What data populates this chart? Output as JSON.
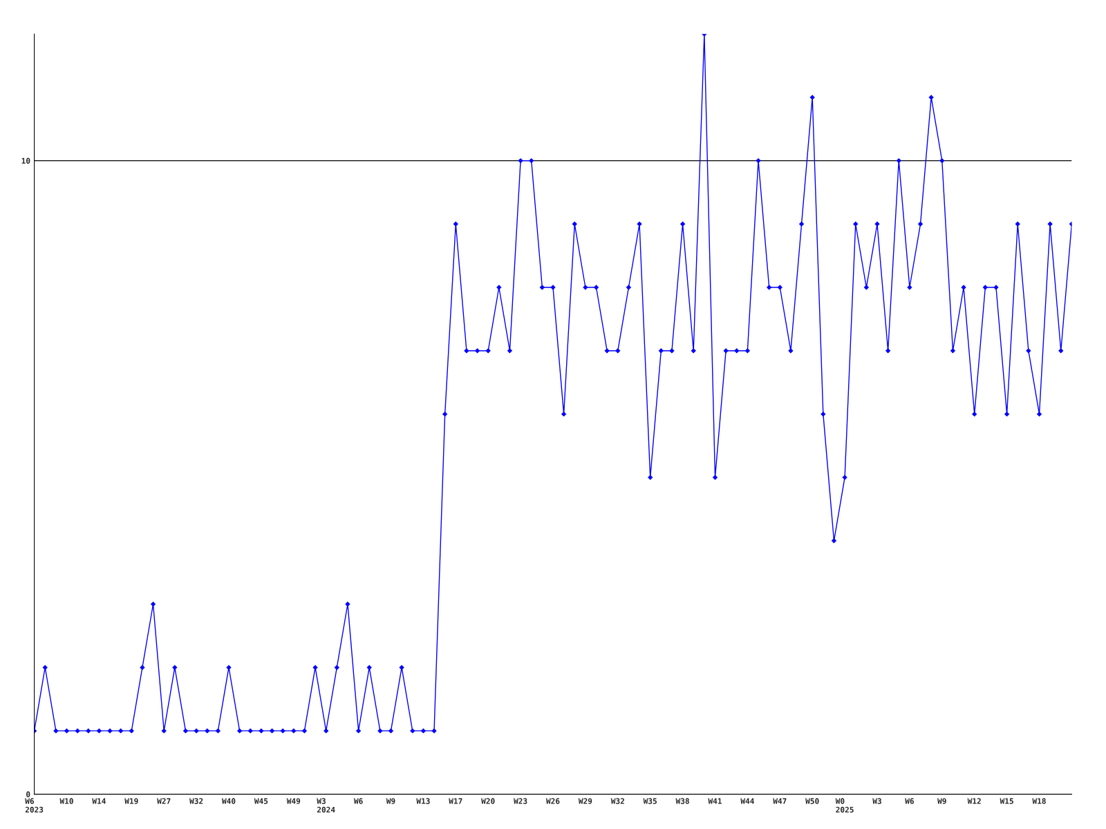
{
  "chart_data": {
    "type": "line",
    "categories": [
      "W6\n2023",
      null,
      null,
      "W10",
      null,
      null,
      "W14",
      null,
      null,
      "W19",
      null,
      null,
      "W27",
      null,
      null,
      "W32",
      null,
      null,
      "W40",
      null,
      null,
      "W45",
      null,
      null,
      "W49",
      null,
      null,
      "W3\n2024",
      null,
      null,
      "W6",
      null,
      null,
      "W9",
      null,
      null,
      "W13",
      null,
      null,
      "W17",
      null,
      null,
      "W20",
      null,
      null,
      "W23",
      null,
      null,
      "W26",
      null,
      null,
      "W29",
      null,
      null,
      "W32",
      null,
      null,
      "W35",
      null,
      null,
      "W38",
      null,
      null,
      "W41",
      null,
      null,
      "W44",
      null,
      null,
      "W47",
      null,
      null,
      "W50",
      null,
      null,
      "W0\n2025",
      null,
      null,
      "W3",
      null,
      null,
      "W6",
      null,
      null,
      "W9",
      null,
      null,
      "W12",
      null,
      null,
      "W15",
      null,
      null,
      "W18",
      null,
      null,
      null
    ],
    "series": [
      {
        "color": "#0000ff",
        "values": [
          1,
          2,
          1,
          1,
          1,
          1,
          1,
          1,
          1,
          1,
          2,
          3,
          1,
          2,
          1,
          1,
          1,
          1,
          2,
          1,
          1,
          1,
          1,
          1,
          1,
          1,
          2,
          1,
          2,
          3,
          1,
          2,
          1,
          1,
          2,
          1,
          1,
          1,
          6,
          9,
          7,
          7,
          7,
          8,
          7,
          10,
          10,
          8,
          8,
          6,
          9,
          8,
          8,
          7,
          7,
          8,
          9,
          5,
          7,
          7,
          9,
          7,
          12,
          5,
          7,
          7,
          7,
          10,
          8,
          8,
          7,
          9,
          11,
          6,
          4,
          5,
          9,
          8,
          9,
          7,
          10,
          8,
          9,
          11,
          10,
          7,
          8,
          6,
          8,
          8,
          6,
          9,
          7,
          6,
          9,
          7,
          9
        ]
      }
    ],
    "ylim": [
      0,
      12
    ],
    "yticks": [
      0,
      10
    ],
    "grid": "y",
    "marker": "diamond",
    "line_style": "solid"
  }
}
